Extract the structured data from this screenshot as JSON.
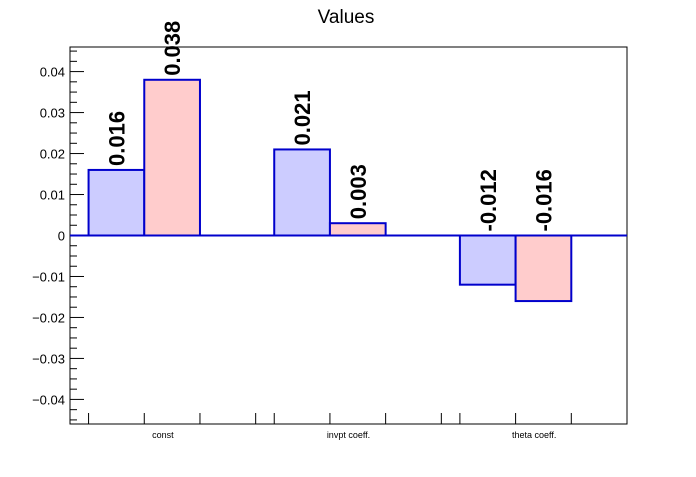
{
  "chart_data": {
    "type": "bar",
    "title": "Values",
    "xlabel": "",
    "ylabel": "",
    "categories": [
      "const",
      "invpt coeff.",
      "theta coeff."
    ],
    "series": [
      {
        "values": [
          0.016,
          0.021,
          -0.012
        ],
        "labels": [
          "0.016",
          "0.021",
          "-0.012"
        ]
      },
      {
        "values": [
          0.038,
          0.003,
          -0.016
        ],
        "labels": [
          "0.038",
          "0.003",
          "-0.016"
        ]
      }
    ],
    "ylim": [
      -0.046,
      0.046
    ],
    "yticks": [
      -0.04,
      -0.03,
      -0.02,
      -0.01,
      0,
      0.01,
      0.02,
      0.03,
      0.04
    ],
    "ytick_labels": [
      "−0.04",
      "−0.03",
      "−0.02",
      "−0.01",
      "0",
      "0.01",
      "0.02",
      "0.03",
      "0.04"
    ],
    "grid": false,
    "colors": {
      "series_fill": [
        "#ccccff",
        "#ffcccc"
      ],
      "bar_stroke": "#0000cc",
      "zero_line": "#0000cc",
      "axis": "#000000"
    }
  }
}
